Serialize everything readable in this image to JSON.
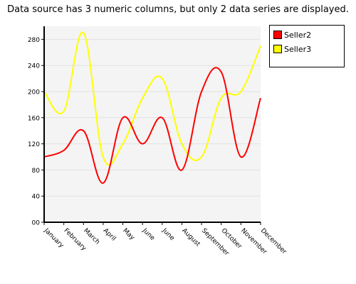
{
  "chart_data": {
    "type": "line",
    "title": "Data source has 3 numeric columns, but only 2 data series are displayed.",
    "xlabel": "",
    "ylabel": "",
    "categories": [
      "January",
      "February",
      "March",
      "April",
      "May",
      "June",
      "June",
      "August",
      "September",
      "October",
      "November",
      "December"
    ],
    "ylim": [
      0,
      300
    ],
    "yticks": [
      0,
      40,
      80,
      120,
      160,
      200,
      240,
      280
    ],
    "ytick_labels": [
      "00",
      "40",
      "80",
      "120",
      "160",
      "200",
      "240",
      "280"
    ],
    "grid": true,
    "legend_position": "top-right",
    "series": [
      {
        "name": "Seller2",
        "color": "#ff0000",
        "values": [
          100,
          110,
          140,
          60,
          160,
          120,
          160,
          80,
          200,
          230,
          100,
          190
        ]
      },
      {
        "name": "Seller3",
        "color": "#ffff00",
        "values": [
          200,
          170,
          290,
          100,
          120,
          190,
          220,
          120,
          100,
          190,
          200,
          270
        ]
      }
    ]
  }
}
